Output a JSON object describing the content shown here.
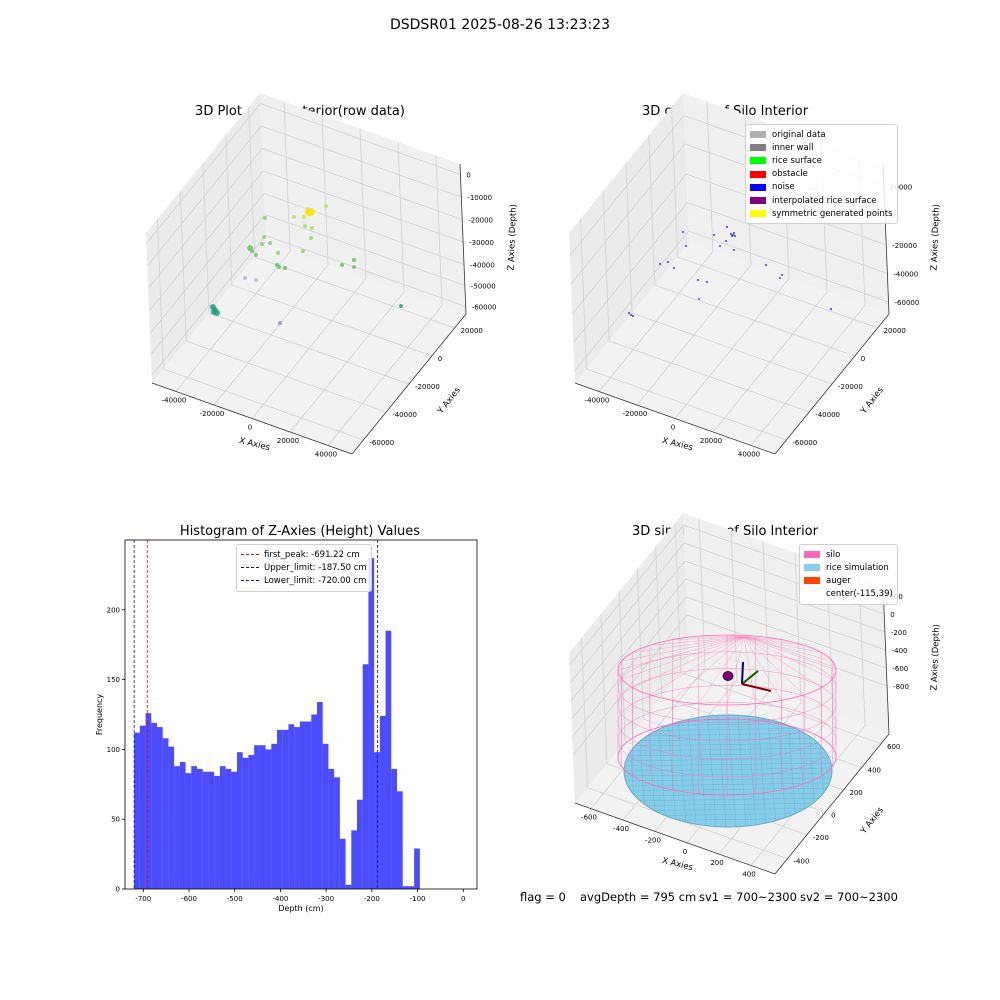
{
  "suptitle": "DSDSR01 2025-08-26 13:23:23",
  "panel1": {
    "title": "3D Plot of Silo Interior(row data)",
    "x_label": "X Axies",
    "y_label": "Y Axies",
    "z_label": "Z Axies (Depth)",
    "x_ticks": [
      "-40000",
      "-20000",
      "0",
      "20000",
      "40000"
    ],
    "y_ticks": [
      "20000",
      "0",
      "-20000",
      "-40000",
      "-60000"
    ],
    "z_ticks": [
      "0",
      "-10000",
      "-20000",
      "-30000",
      "-40000",
      "-50000",
      "-60000"
    ]
  },
  "panel2": {
    "title": "3D classify of Silo Interior",
    "x_label": "X Axies",
    "y_label": "Y Axies",
    "z_label": "Z Axies (Depth)",
    "x_ticks": [
      "-40000",
      "-20000",
      "0",
      "20000",
      "40000"
    ],
    "y_ticks": [
      "20000",
      "0",
      "-20000",
      "-40000",
      "-60000"
    ],
    "z_ticks": [
      "20000",
      "0",
      "-20000",
      "-40000",
      "-60000"
    ],
    "legend": [
      {
        "label": "original data",
        "color": "#b0b0b0"
      },
      {
        "label": "inner wall",
        "color": "#808080"
      },
      {
        "label": "rice surface",
        "color": "#00ff00"
      },
      {
        "label": "obstacle",
        "color": "#ff0000"
      },
      {
        "label": "noise",
        "color": "#0000ff"
      },
      {
        "label": "interpolated rice surface",
        "color": "#800080"
      },
      {
        "label": "symmetric generated points",
        "color": "#ffff00"
      }
    ]
  },
  "panel4": {
    "title": "3D simulation of Silo Interior",
    "x_label": "X Axies",
    "y_label": "Y Axies",
    "z_label": "Z Axies (Depth)",
    "x_ticks": [
      "-600",
      "-400",
      "-200",
      "0",
      "200",
      "400"
    ],
    "y_ticks": [
      "600",
      "400",
      "200",
      "0",
      "-200",
      "-400"
    ],
    "z_ticks": [
      "200",
      "0",
      "-200",
      "-400",
      "-600",
      "-800"
    ],
    "legend": [
      {
        "label": "silo",
        "color": "#ff69b4"
      },
      {
        "label": "rice simulation",
        "color": "#87ceeb"
      },
      {
        "label": "auger",
        "color": "#ff4500"
      },
      {
        "label": "center(-115,39)",
        "color": ""
      }
    ]
  },
  "footer": {
    "flag": "flag = 0",
    "avg_depth": "avgDepth = 795 cm",
    "sv1": "sv1 = 700~2300",
    "sv2": "sv2 = 700~2300"
  },
  "chart_data": {
    "type": "bar",
    "title": "Histogram of Z-Axies (Height) Values",
    "xlabel": "Depth (cm)",
    "ylabel": "Frequency",
    "xlim": [
      -740,
      30
    ],
    "ylim": [
      0,
      250
    ],
    "x_ticks": [
      -700,
      -600,
      -500,
      -400,
      -300,
      -200,
      -100,
      0
    ],
    "y_ticks": [
      0,
      50,
      100,
      150,
      200
    ],
    "bin_start": -720,
    "bin_width": 12.5,
    "values": [
      112,
      117,
      126,
      119,
      116,
      108,
      102,
      88,
      91,
      83,
      88,
      86,
      84,
      84,
      81,
      88,
      86,
      84,
      98,
      94,
      96,
      103,
      103,
      100,
      104,
      114,
      114,
      118,
      116,
      120,
      120,
      125,
      134,
      104,
      86,
      80,
      36,
      3,
      42,
      64,
      161,
      237,
      98,
      124,
      185,
      86,
      70,
      2,
      2,
      29
    ],
    "color": "#0000ff",
    "vlines": [
      {
        "label": "first_peak: -691.22 cm",
        "x": -691.22,
        "color": "#ff0000"
      },
      {
        "label": "Upper_limit: -187.50 cm",
        "x": -187.5,
        "color": "#0000ff"
      },
      {
        "label": "Lower_limit: -720.00 cm",
        "x": -720.0,
        "color": "#0000ff"
      }
    ]
  }
}
